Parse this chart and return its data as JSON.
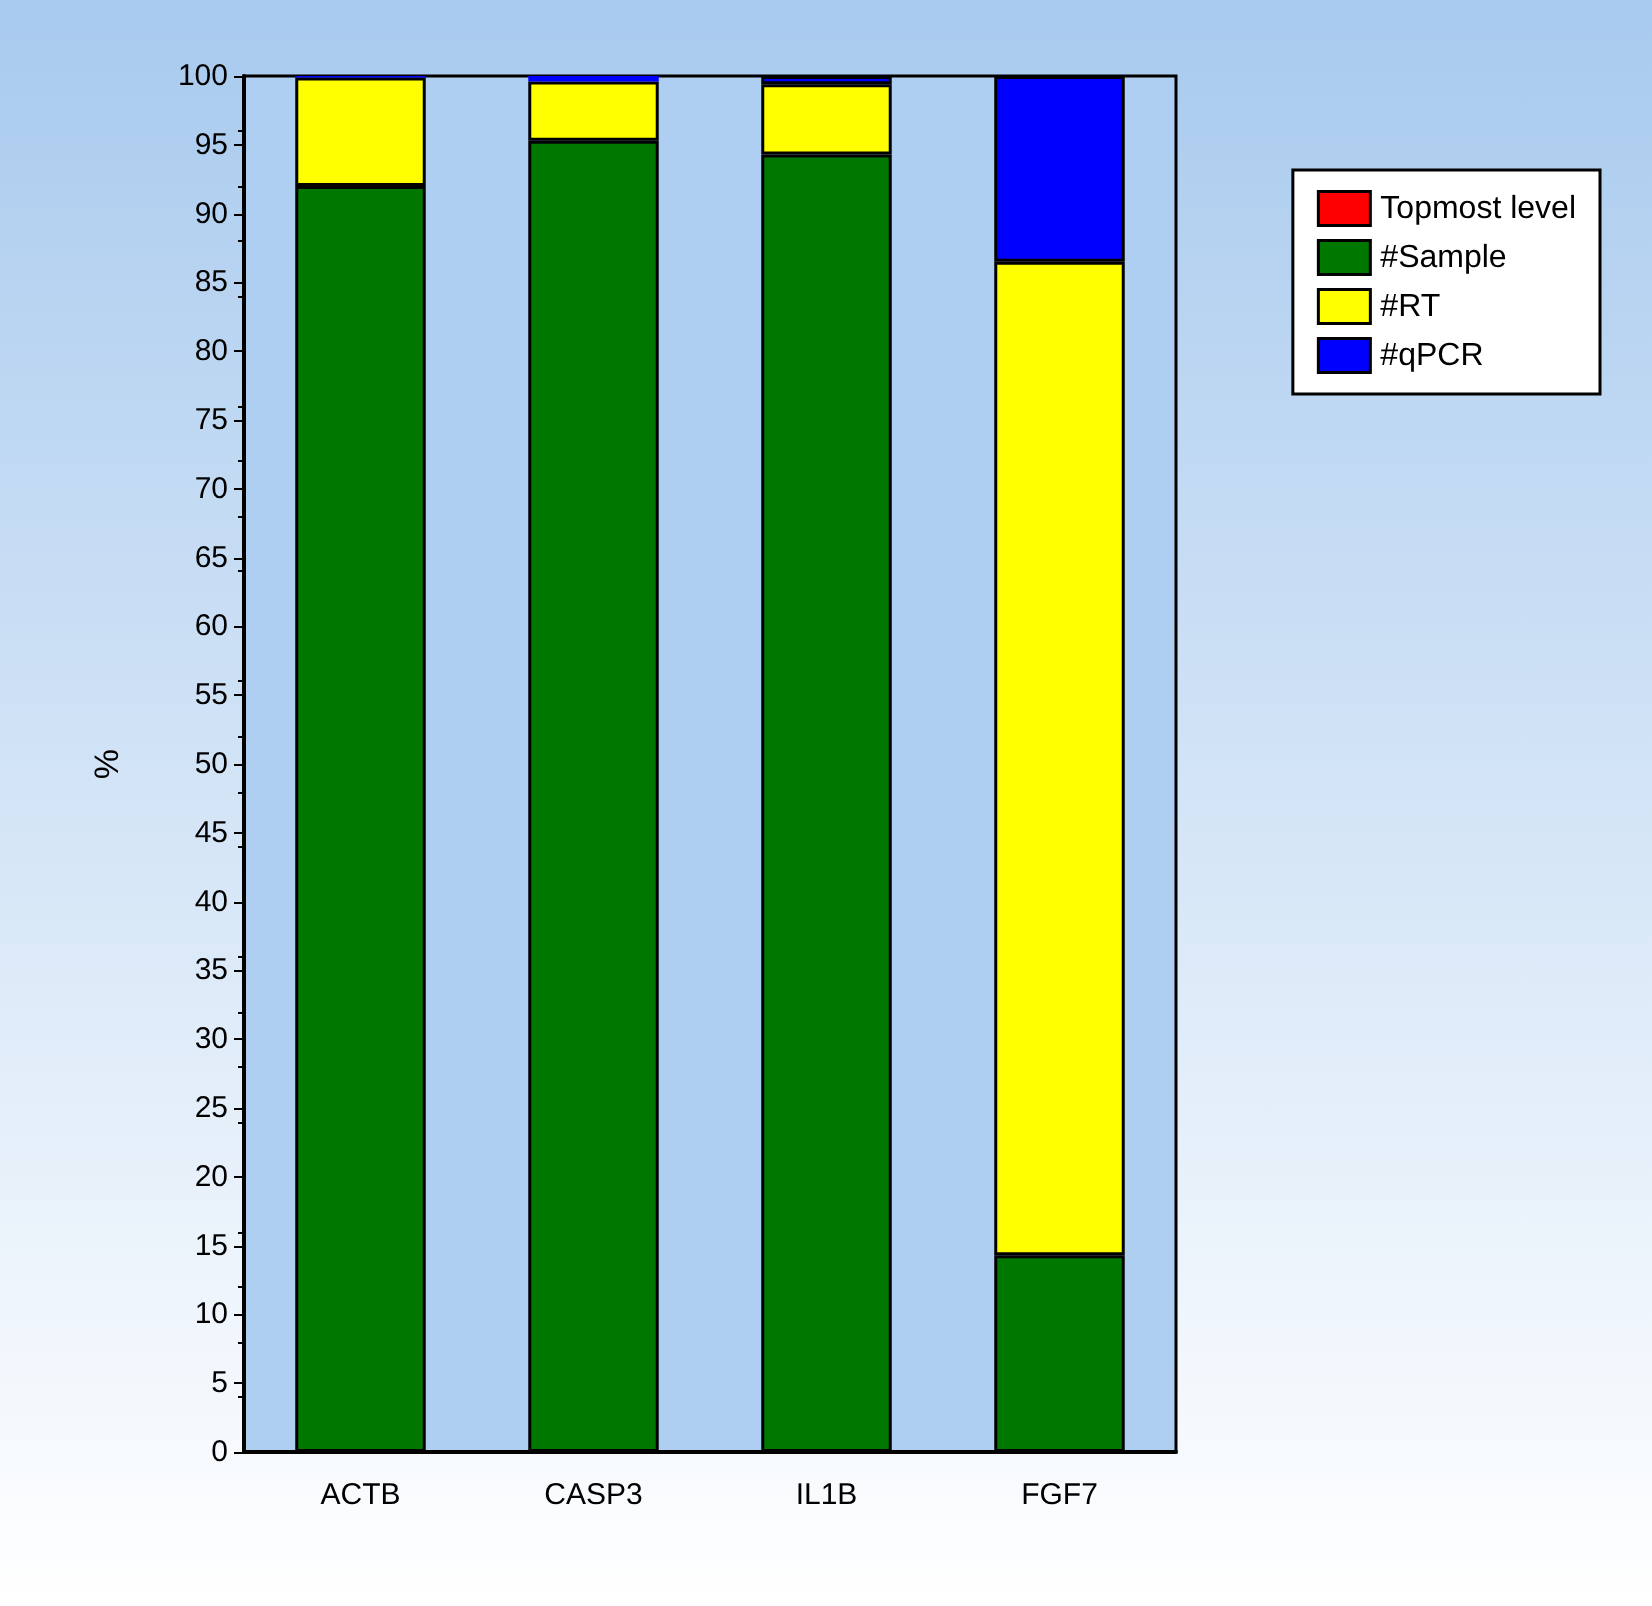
{
  "chart_data": {
    "type": "bar",
    "stacked": true,
    "ylabel": "%",
    "categories": [
      "ACTB",
      "CASP3",
      "IL1B",
      "FGF7"
    ],
    "series": [
      {
        "name": "Topmost level",
        "color": "#ff0000",
        "values": [
          0,
          0,
          0,
          0
        ]
      },
      {
        "name": "#Sample",
        "color": "#007800",
        "values": [
          92,
          95.3,
          94.3,
          14.3
        ]
      },
      {
        "name": "#RT",
        "color": "#ffff00",
        "values": [
          7.9,
          4.3,
          5.1,
          72.2
        ]
      },
      {
        "name": "#qPCR",
        "color": "#0000ff",
        "values": [
          0.1,
          0.4,
          0.6,
          13.5
        ]
      }
    ],
    "ylim": [
      0,
      100
    ],
    "yticks": [
      0,
      5,
      10,
      15,
      20,
      25,
      30,
      35,
      40,
      45,
      50,
      55,
      60,
      65,
      70,
      75,
      80,
      85,
      90,
      95,
      100
    ],
    "grid": false,
    "legend": "right"
  }
}
